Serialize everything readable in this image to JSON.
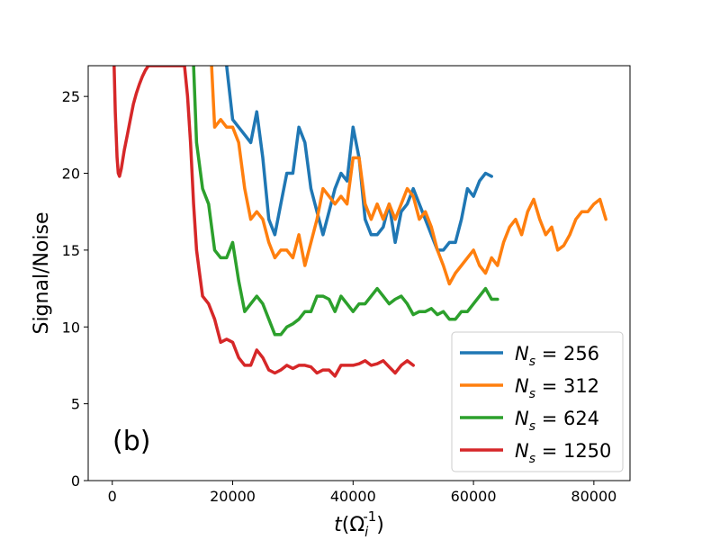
{
  "chart_data": {
    "type": "line",
    "panel_label": "(b)",
    "xlabel": "t(Ω_i^{-1})",
    "ylabel": "Signal/Noise",
    "xlim": [
      -4000,
      86000
    ],
    "ylim": [
      0,
      27
    ],
    "xticks": [
      0,
      20000,
      40000,
      60000,
      80000
    ],
    "yticks": [
      0,
      5,
      10,
      15,
      20,
      25
    ],
    "grid": false,
    "legend_position": "lower-right",
    "series": [
      {
        "name": "N_s = 256",
        "legend_label": {
          "var": "N",
          "sub": "s",
          "rest": " = 256"
        },
        "color": "#1f77b4",
        "x": [
          19000,
          20000,
          21000,
          22000,
          23000,
          24000,
          25000,
          26000,
          27000,
          28000,
          29000,
          30000,
          31000,
          32000,
          33000,
          34000,
          35000,
          36000,
          37000,
          38000,
          39000,
          40000,
          41000,
          42000,
          43000,
          44000,
          45000,
          46000,
          47000,
          48000,
          49000,
          50000,
          51000,
          52000,
          53000,
          54000,
          55000,
          56000,
          57000,
          58000,
          59000,
          60000,
          61000,
          62000,
          63000
        ],
        "y": [
          27,
          23.5,
          23,
          22.5,
          22,
          24,
          21,
          17,
          16,
          18,
          20,
          20,
          23,
          22,
          19,
          17.5,
          16,
          17.5,
          19,
          20,
          19.5,
          23,
          21,
          17,
          16,
          16,
          16.5,
          18,
          15.5,
          17.5,
          18,
          19,
          18,
          17,
          16,
          15,
          15,
          15.5,
          15.5,
          17,
          19,
          18.5,
          19.5,
          20,
          19.8
        ]
      },
      {
        "name": "N_s = 312",
        "legend_label": {
          "var": "N",
          "sub": "s",
          "rest": " = 312"
        },
        "color": "#ff7f0e",
        "x": [
          16500,
          17000,
          18000,
          19000,
          20000,
          21000,
          22000,
          23000,
          24000,
          25000,
          26000,
          27000,
          28000,
          29000,
          30000,
          31000,
          32000,
          33000,
          34000,
          35000,
          36000,
          37000,
          38000,
          39000,
          40000,
          41000,
          42000,
          43000,
          44000,
          45000,
          46000,
          47000,
          48000,
          49000,
          50000,
          51000,
          52000,
          53000,
          54000,
          55000,
          56000,
          57000,
          58000,
          59000,
          60000,
          61000,
          62000,
          63000,
          64000,
          65000,
          66000,
          67000,
          68000,
          69000,
          70000,
          71000,
          72000,
          73000,
          74000,
          75000,
          76000,
          77000,
          78000,
          79000,
          80000,
          81000,
          82000
        ],
        "y": [
          27,
          23,
          23.5,
          23,
          23,
          22,
          19,
          17,
          17.5,
          17,
          15.5,
          14.5,
          15,
          15,
          14.5,
          16,
          14,
          15.5,
          17,
          19,
          18.5,
          18,
          18.5,
          18,
          21,
          21,
          18,
          17,
          18,
          17,
          18,
          17,
          18,
          19,
          18.5,
          17,
          17.5,
          16.5,
          15,
          14,
          12.8,
          13.5,
          14,
          14.5,
          15,
          14,
          13.5,
          14.5,
          14,
          15.5,
          16.5,
          17,
          16,
          17.5,
          18.3,
          17,
          16,
          16.5,
          15,
          15.3,
          16,
          17,
          17.5,
          17.5,
          18,
          18.3,
          17
        ]
      },
      {
        "name": "N_s = 624",
        "legend_label": {
          "var": "N",
          "sub": "s",
          "rest": " = 624"
        },
        "color": "#2ca02c",
        "x": [
          13500,
          14000,
          15000,
          16000,
          17000,
          18000,
          19000,
          20000,
          21000,
          22000,
          23000,
          24000,
          25000,
          26000,
          27000,
          28000,
          29000,
          30000,
          31000,
          32000,
          33000,
          34000,
          35000,
          36000,
          37000,
          38000,
          39000,
          40000,
          41000,
          42000,
          43000,
          44000,
          45000,
          46000,
          47000,
          48000,
          49000,
          50000,
          51000,
          52000,
          53000,
          54000,
          55000,
          56000,
          57000,
          58000,
          59000,
          60000,
          61000,
          62000,
          63000,
          64000
        ],
        "y": [
          27,
          22,
          19,
          18,
          15,
          14.5,
          14.5,
          15.5,
          13,
          11,
          11.5,
          12,
          11.5,
          10.5,
          9.5,
          9.5,
          10,
          10.2,
          10.5,
          11,
          11,
          12,
          12,
          11.8,
          11,
          12,
          11.5,
          11,
          11.5,
          11.5,
          12,
          12.5,
          12,
          11.5,
          11.8,
          12,
          11.5,
          10.8,
          11,
          11,
          11.2,
          10.8,
          11,
          10.5,
          10.5,
          11,
          11,
          11.5,
          12,
          12.5,
          11.8,
          11.8
        ]
      },
      {
        "name": "N_s = 1250",
        "legend_label": {
          "var": "N",
          "sub": "s",
          "rest": " = 1250"
        },
        "color": "#d62728",
        "x": [
          300,
          500,
          800,
          1000,
          1200,
          1500,
          2000,
          2500,
          3000,
          3500,
          4000,
          4500,
          5000,
          5500,
          6000,
          12000,
          12500,
          13000,
          13500,
          14000,
          14500,
          15000,
          16000,
          17000,
          18000,
          19000,
          20000,
          21000,
          22000,
          23000,
          24000,
          25000,
          26000,
          27000,
          28000,
          29000,
          30000,
          31000,
          32000,
          33000,
          34000,
          35000,
          36000,
          37000,
          38000,
          39000,
          40000,
          41000,
          42000,
          43000,
          44000,
          45000,
          46000,
          47000,
          48000,
          49000,
          50000
        ],
        "y": [
          27,
          24,
          21,
          20,
          19.8,
          20.3,
          21.5,
          22.5,
          23.5,
          24.5,
          25.2,
          25.8,
          26.3,
          26.7,
          27,
          27,
          25,
          22,
          18,
          15,
          13.5,
          12,
          11.5,
          10.5,
          9,
          9.2,
          9,
          8,
          7.5,
          7.5,
          8.5,
          8,
          7.2,
          7,
          7.2,
          7.5,
          7.3,
          7.5,
          7.5,
          7.4,
          7,
          7.2,
          7.2,
          6.8,
          7.5,
          7.5,
          7.5,
          7.6,
          7.8,
          7.5,
          7.6,
          7.8,
          7.4,
          7,
          7.5,
          7.8,
          7.5
        ]
      }
    ]
  }
}
